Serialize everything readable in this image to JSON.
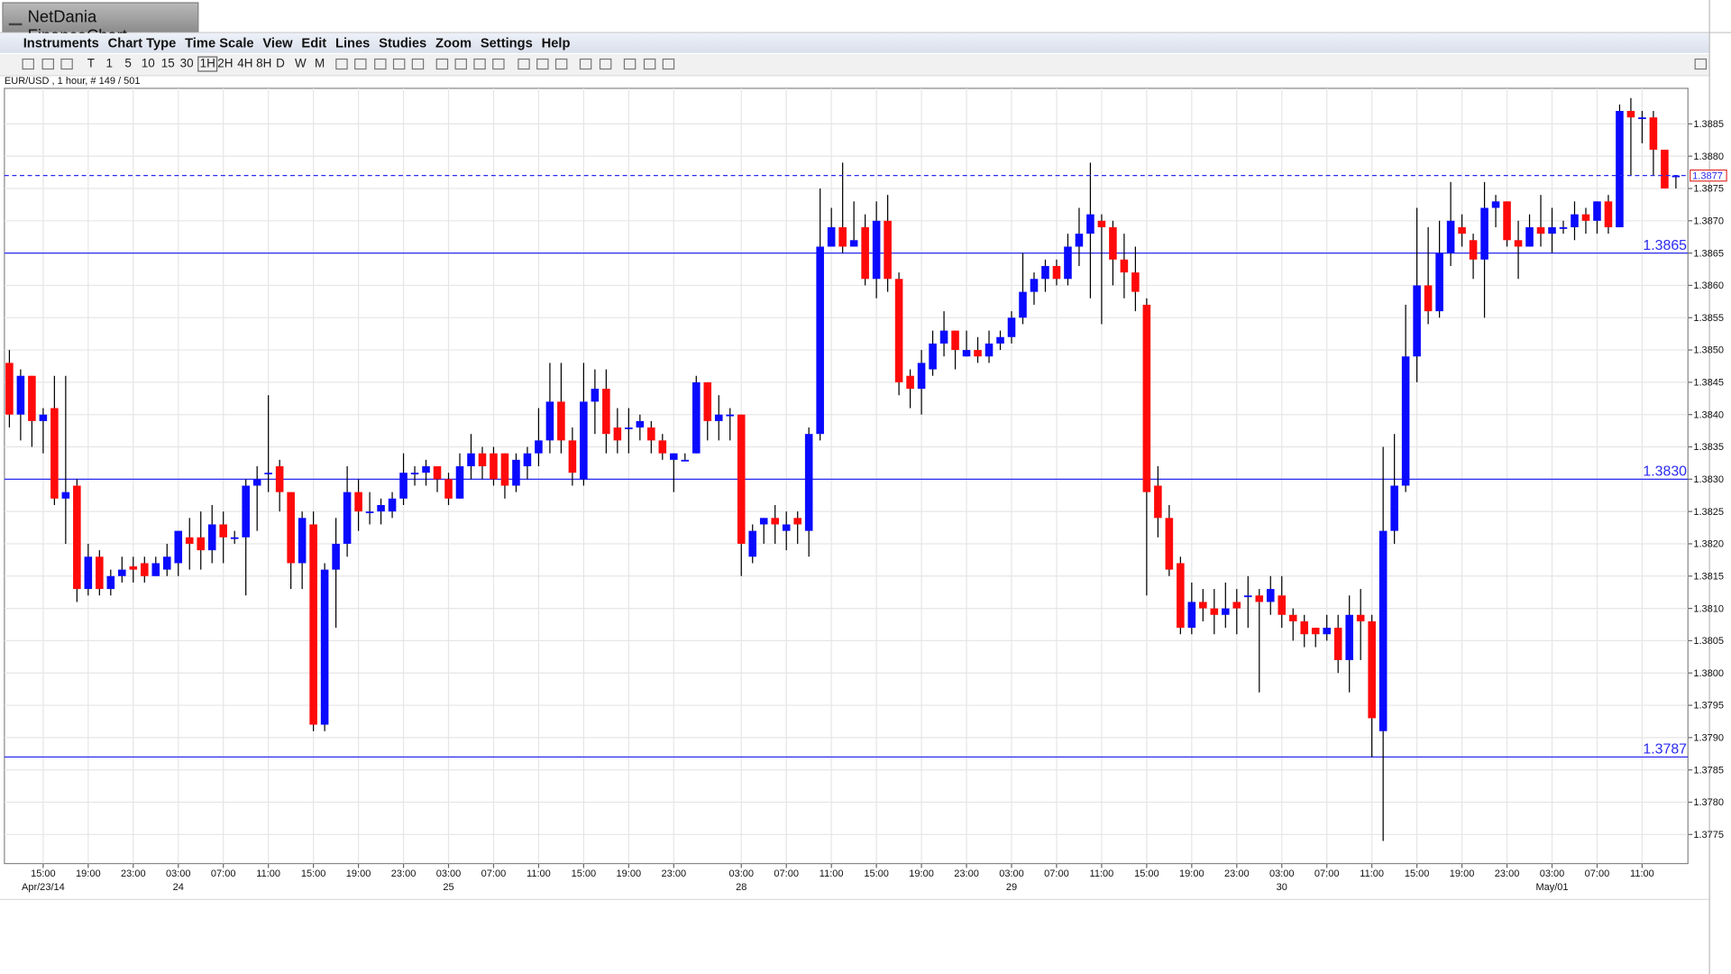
{
  "window": {
    "title": "NetDania FinanceChart"
  },
  "menu": [
    "Instruments",
    "Chart Type",
    "Time Scale",
    "View",
    "Edit",
    "Lines",
    "Studies",
    "Zoom",
    "Settings",
    "Help"
  ],
  "toolbar": {
    "timeframes": [
      "T",
      "1",
      "5",
      "10",
      "15",
      "30",
      "1H",
      "2H",
      "4H",
      "8H",
      "D",
      "W",
      "M"
    ]
  },
  "chart_data": {
    "type": "candlestick",
    "info": "EUR/USD , 1 hour, # 149 / 501",
    "up_color": "#0a0aff",
    "down_color": "#ff0a0a",
    "line_color": "#2a2af0",
    "grid": true,
    "ylim": [
      1.37705,
      1.38905
    ],
    "yticks": [
      1.3775,
      {
        "value": 1.378,
        "label": "1.3780"
      },
      1.3785,
      {
        "value": 1.379,
        "label": "1.3790"
      },
      1.3795,
      {
        "value": 1.38,
        "label": "1.3800"
      },
      1.3805,
      {
        "value": 1.381,
        "label": "1.3810"
      },
      1.3815,
      {
        "value": 1.382,
        "label": "1.3820"
      },
      1.3825,
      {
        "value": 1.383,
        "label": "1.3830"
      },
      1.3835,
      {
        "value": 1.384,
        "label": "1.3840"
      },
      1.3845,
      {
        "value": 1.385,
        "label": "1.3850"
      },
      1.3855,
      {
        "value": 1.386,
        "label": "1.3860"
      },
      1.3865,
      {
        "value": 1.387,
        "label": "1.3870"
      },
      1.3875,
      {
        "value": 1.388,
        "label": "1.3880"
      },
      1.3885
    ],
    "hlines": [
      {
        "value": 1.3865,
        "label": "1.3865"
      },
      {
        "value": 1.383,
        "label": "1.3830"
      },
      {
        "value": 1.3787,
        "label": "1.3787"
      }
    ],
    "current_price": 1.3877,
    "categories": [
      null,
      null,
      null,
      "15:00",
      null,
      null,
      null,
      "19:00",
      null,
      null,
      null,
      "23:00",
      null,
      null,
      null,
      "03:00",
      null,
      null,
      null,
      "07:00",
      null,
      null,
      null,
      "11:00",
      null,
      null,
      null,
      "15:00",
      null,
      null,
      null,
      "19:00",
      null,
      null,
      null,
      "23:00",
      null,
      null,
      null,
      "03:00",
      null,
      null,
      null,
      "07:00",
      null,
      null,
      null,
      "11:00",
      null,
      null,
      null,
      "15:00",
      null,
      null,
      null,
      "19:00",
      null,
      null,
      null,
      "23:00",
      null,
      null,
      null,
      null,
      null,
      "03:00",
      null,
      null,
      null,
      "07:00",
      null,
      null,
      null,
      "11:00",
      null,
      null,
      null,
      "15:00",
      null,
      null,
      null,
      "19:00",
      null,
      null,
      null,
      "23:00",
      null,
      null,
      null,
      "03:00",
      null,
      null,
      null,
      "07:00",
      null,
      null,
      null,
      "11:00",
      null,
      null,
      null,
      "15:00",
      null,
      null,
      null,
      "19:00",
      null,
      null,
      null,
      "23:00",
      null,
      null,
      null,
      "03:00",
      null,
      null,
      null,
      "07:00",
      null,
      null,
      null,
      "11:00",
      null,
      null,
      null,
      "15:00",
      null,
      null,
      null,
      "19:00",
      null,
      null,
      null,
      "23:00",
      null,
      null,
      null,
      "03:00",
      null,
      null,
      null,
      "07:00",
      null,
      null,
      null,
      "11:00",
      null,
      null,
      null
    ],
    "dates": [
      null,
      null,
      null,
      "Apr/23/14",
      null,
      null,
      null,
      null,
      null,
      null,
      null,
      null,
      null,
      null,
      null,
      "24",
      null,
      null,
      null,
      null,
      null,
      null,
      null,
      null,
      null,
      null,
      null,
      null,
      null,
      null,
      null,
      null,
      null,
      null,
      null,
      null,
      null,
      null,
      null,
      "25",
      null,
      null,
      null,
      null,
      null,
      null,
      null,
      null,
      null,
      null,
      null,
      null,
      null,
      null,
      null,
      null,
      null,
      null,
      null,
      null,
      null,
      null,
      null,
      null,
      null,
      "28",
      null,
      null,
      null,
      null,
      null,
      null,
      null,
      null,
      null,
      null,
      null,
      null,
      null,
      null,
      null,
      null,
      null,
      null,
      null,
      null,
      null,
      null,
      null,
      "29",
      null,
      null,
      null,
      null,
      null,
      null,
      null,
      null,
      null,
      null,
      null,
      null,
      null,
      null,
      null,
      null,
      null,
      null,
      null,
      null,
      null,
      null,
      null,
      "30",
      null,
      null,
      null,
      null,
      null,
      null,
      null,
      null,
      null,
      null,
      null,
      null,
      null,
      null,
      null,
      null,
      null,
      null,
      null,
      null,
      null,
      null,
      null,
      "May/01",
      null,
      null,
      null,
      null,
      null,
      null,
      null,
      null,
      null,
      null,
      null
    ],
    "open": [
      1.3848,
      1.384,
      1.3846,
      1.3839,
      1.3841,
      1.3827,
      1.3829,
      1.3813,
      1.3818,
      1.3813,
      1.3815,
      1.38165,
      1.3817,
      1.3815,
      1.3816,
      1.3817,
      1.3821,
      1.3821,
      1.3819,
      1.3823,
      1.3821,
      1.3821,
      1.3829,
      1.3831,
      1.3832,
      1.3828,
      1.3817,
      1.3823,
      1.3792,
      1.3816,
      1.382,
      1.3828,
      1.3825,
      1.3825,
      1.3825,
      1.3827,
      1.3831,
      1.3831,
      1.3832,
      1.383,
      1.3827,
      1.3832,
      1.3834,
      1.3834,
      1.3834,
      1.3829,
      1.3832,
      1.3834,
      1.3836,
      1.3842,
      1.3836,
      1.383,
      1.3842,
      1.3844,
      1.3838,
      1.3838,
      1.3838,
      1.3838,
      1.3836,
      1.3833,
      1.3833,
      1.3834,
      1.3845,
      1.3839,
      1.384,
      1.384,
      1.3818,
      1.3823,
      1.3824,
      1.3822,
      1.3824,
      1.3822,
      1.3837,
      1.3866,
      1.3869,
      1.3866,
      1.3869,
      1.3861,
      1.387,
      1.3861,
      1.3846,
      1.3844,
      1.3847,
      1.3851,
      1.3853,
      1.3849,
      1.385,
      1.3849,
      1.3851,
      1.3852,
      1.3855,
      1.3859,
      1.3861,
      1.3863,
      1.3861,
      1.3866,
      1.3868,
      1.387,
      1.3869,
      1.3864,
      1.3862,
      1.3857,
      1.3829,
      1.3824,
      1.3817,
      1.3807,
      1.3811,
      1.381,
      1.3809,
      1.3811,
      1.3812,
      1.3812,
      1.3811,
      1.3812,
      1.3809,
      1.3808,
      1.3807,
      1.3806,
      1.3807,
      1.3802,
      1.3809,
      1.3808,
      1.3791,
      1.3822,
      1.3829,
      1.3849,
      1.386,
      1.3856,
      1.3865,
      1.3869,
      1.3867,
      1.3864,
      1.3872,
      1.3873,
      1.3867,
      1.3866,
      1.3869,
      1.3868,
      1.3869,
      1.3869,
      1.3871,
      1.387,
      1.3873,
      1.3869,
      1.3887,
      1.3886,
      1.3886,
      1.3881,
      1.3877
    ],
    "high": [
      1.385,
      1.3847,
      1.3846,
      1.3841,
      1.3846,
      1.3846,
      1.383,
      1.382,
      1.3819,
      1.3816,
      1.3818,
      1.3818,
      1.3818,
      1.3818,
      1.382,
      1.3822,
      1.3824,
      1.3825,
      1.3826,
      1.3825,
      1.3822,
      1.383,
      1.3832,
      1.3843,
      1.3833,
      1.3828,
      1.3825,
      1.3825,
      1.3817,
      1.3824,
      1.3832,
      1.383,
      1.3828,
      1.3827,
      1.3828,
      1.3834,
      1.3832,
      1.3833,
      1.3832,
      1.3831,
      1.3834,
      1.3837,
      1.3835,
      1.3835,
      1.3834,
      1.3834,
      1.3835,
      1.3841,
      1.3848,
      1.3848,
      1.3838,
      1.3848,
      1.3847,
      1.3847,
      1.3841,
      1.3841,
      1.384,
      1.3839,
      1.3837,
      1.3834,
      1.3834,
      1.3846,
      1.3845,
      1.3843,
      1.3841,
      1.384,
      1.3823,
      1.3824,
      1.3826,
      1.3825,
      1.3825,
      1.3838,
      1.3875,
      1.3872,
      1.3879,
      1.3873,
      1.3871,
      1.3873,
      1.3874,
      1.3862,
      1.3847,
      1.385,
      1.3853,
      1.3856,
      1.3853,
      1.3853,
      1.3852,
      1.3853,
      1.3853,
      1.3856,
      1.3865,
      1.3862,
      1.3864,
      1.3864,
      1.3868,
      1.3872,
      1.3879,
      1.3871,
      1.387,
      1.3868,
      1.3866,
      1.3858,
      1.3832,
      1.3826,
      1.3818,
      1.3814,
      1.3813,
      1.3813,
      1.3814,
      1.3813,
      1.3815,
      1.3813,
      1.3815,
      1.3815,
      1.381,
      1.3809,
      1.3807,
      1.3809,
      1.3809,
      1.3812,
      1.3813,
      1.3809,
      1.3835,
      1.3837,
      1.3857,
      1.3872,
      1.3869,
      1.387,
      1.3876,
      1.3871,
      1.3868,
      1.3876,
      1.3874,
      1.3873,
      1.387,
      1.3871,
      1.3874,
      1.3872,
      1.387,
      1.3873,
      1.3872,
      1.3873,
      1.3874,
      1.3888,
      1.3889,
      1.3887,
      1.3887,
      1.3881,
      1.3877
    ],
    "low": [
      1.3838,
      1.3836,
      1.3835,
      1.3834,
      1.3826,
      1.382,
      1.3811,
      1.3812,
      1.3812,
      1.3812,
      1.3814,
      1.3814,
      1.3814,
      1.3815,
      1.3815,
      1.3815,
      1.3816,
      1.3816,
      1.3817,
      1.3817,
      1.382,
      1.3812,
      1.3822,
      1.3828,
      1.3825,
      1.3813,
      1.3813,
      1.3791,
      1.3791,
      1.3807,
      1.3818,
      1.3822,
      1.3823,
      1.3823,
      1.3824,
      1.3826,
      1.3829,
      1.3829,
      1.3828,
      1.3826,
      1.3827,
      1.383,
      1.383,
      1.3829,
      1.3827,
      1.3828,
      1.383,
      1.3832,
      1.3834,
      1.3834,
      1.3829,
      1.3829,
      1.3837,
      1.3834,
      1.3834,
      1.3834,
      1.3836,
      1.3834,
      1.3833,
      1.3828,
      1.3833,
      1.3834,
      1.3836,
      1.3836,
      1.3836,
      1.3815,
      1.3817,
      1.382,
      1.382,
      1.3819,
      1.382,
      1.3818,
      1.3836,
      1.3866,
      1.3865,
      1.3866,
      1.386,
      1.3858,
      1.3859,
      1.3843,
      1.3841,
      1.384,
      1.3846,
      1.3849,
      1.3847,
      1.3849,
      1.3848,
      1.3848,
      1.385,
      1.3851,
      1.3854,
      1.3857,
      1.3859,
      1.386,
      1.386,
      1.3863,
      1.3858,
      1.3854,
      1.386,
      1.3858,
      1.3856,
      1.3812,
      1.3821,
      1.3815,
      1.3806,
      1.3806,
      1.3808,
      1.3806,
      1.3807,
      1.3806,
      1.3807,
      1.3797,
      1.3809,
      1.3807,
      1.3805,
      1.3804,
      1.3804,
      1.3805,
      1.38,
      1.3797,
      1.3802,
      1.3787,
      1.3774,
      1.382,
      1.3828,
      1.3845,
      1.3854,
      1.3855,
      1.3863,
      1.3866,
      1.3861,
      1.3855,
      1.3869,
      1.3866,
      1.3861,
      1.3866,
      1.3866,
      1.3865,
      1.3868,
      1.3867,
      1.3868,
      1.3868,
      1.3868,
      1.3869,
      1.3877,
      1.3882,
      1.3877,
      1.3875,
      1.3875
    ],
    "close": [
      1.384,
      1.3846,
      1.3839,
      1.384,
      1.3827,
      1.3828,
      1.3813,
      1.3818,
      1.3813,
      1.3815,
      1.3816,
      1.3816,
      1.3815,
      1.3817,
      1.3818,
      1.3822,
      1.382,
      1.3819,
      1.3823,
      1.3821,
      1.3821,
      1.3829,
      1.383,
      1.3831,
      1.3828,
      1.3817,
      1.3824,
      1.3792,
      1.3816,
      1.382,
      1.3828,
      1.3825,
      1.3825,
      1.3826,
      1.3827,
      1.3831,
      1.3831,
      1.3832,
      1.383,
      1.3827,
      1.3832,
      1.3834,
      1.3832,
      1.383,
      1.3829,
      1.3833,
      1.3834,
      1.3836,
      1.3842,
      1.3836,
      1.3831,
      1.3842,
      1.3844,
      1.3837,
      1.3836,
      1.3838,
      1.3839,
      1.3836,
      1.3834,
      1.3834,
      1.3833,
      1.3845,
      1.3839,
      1.384,
      1.384,
      1.382,
      1.3822,
      1.3824,
      1.3823,
      1.3823,
      1.3823,
      1.3837,
      1.3866,
      1.3869,
      1.3866,
      1.3867,
      1.3861,
      1.387,
      1.3861,
      1.3845,
      1.3844,
      1.3848,
      1.3851,
      1.3853,
      1.385,
      1.385,
      1.3849,
      1.3851,
      1.3852,
      1.3855,
      1.3859,
      1.3861,
      1.3863,
      1.3861,
      1.3866,
      1.3868,
      1.3871,
      1.3869,
      1.3864,
      1.3862,
      1.3859,
      1.3828,
      1.3824,
      1.3816,
      1.3807,
      1.3811,
      1.381,
      1.3809,
      1.381,
      1.381,
      1.3812,
      1.3811,
      1.3813,
      1.3809,
      1.3808,
      1.3806,
      1.3806,
      1.3807,
      1.3802,
      1.3809,
      1.3808,
      1.3793,
      1.3822,
      1.3829,
      1.3849,
      1.386,
      1.3856,
      1.3865,
      1.387,
      1.3868,
      1.3864,
      1.3872,
      1.3873,
      1.3867,
      1.3866,
      1.3869,
      1.3868,
      1.3869,
      1.3869,
      1.3871,
      1.387,
      1.3873,
      1.3869,
      1.3887,
      1.3886,
      1.3886,
      1.3881,
      1.3875,
      1.3877
    ]
  }
}
